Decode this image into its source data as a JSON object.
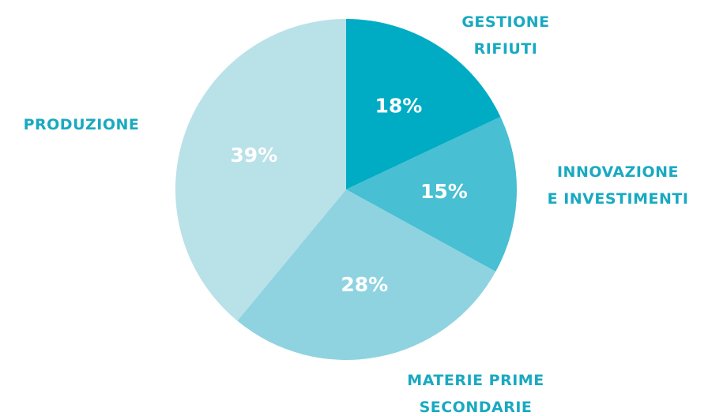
{
  "chart_data": {
    "type": "pie",
    "categories": [
      "GESTIONE\nRIFIUTI",
      "INNOVAZIONE\nE INVESTIMENTI",
      "MATERIE PRIME\nSECONDARIE",
      "PRODUZIONE"
    ],
    "values": [
      18,
      15,
      28,
      39
    ],
    "value_labels": [
      "18%",
      "15%",
      "28%",
      "39%"
    ],
    "colors": [
      "#00acc3",
      "#48bfd2",
      "#8fd3e0",
      "#b9e1e8"
    ]
  }
}
